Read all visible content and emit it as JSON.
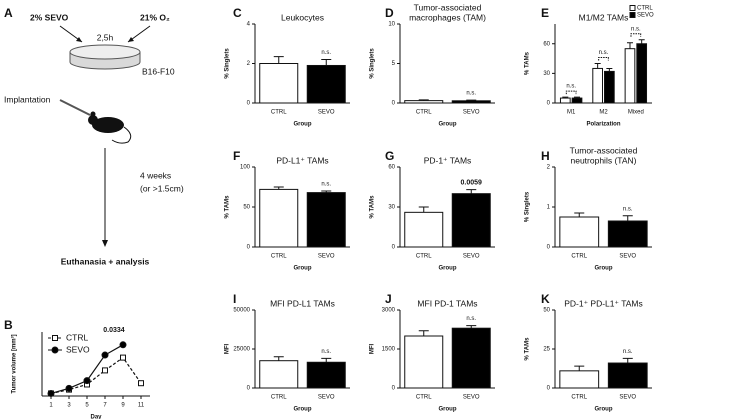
{
  "diagram": {
    "panel": "A",
    "sevo": "2% SEVO",
    "oxygen": "21% O₂",
    "time": "2,5h",
    "cells": "B16-F10",
    "implantation": "Implantation",
    "duration": "4 weeks",
    "criterion": "(or >1.5cm)",
    "endpoint": "Euthanasia + analysis"
  },
  "chart_data": [
    {
      "panel": "B",
      "type": "line",
      "xlabel": "Day",
      "ylabel": "Tumor volume [mm³]",
      "x": [
        1,
        3,
        5,
        7,
        9,
        11
      ],
      "xlim": [
        0,
        12
      ],
      "xticks": [
        1,
        3,
        5,
        7,
        9,
        11
      ],
      "ylim": [
        0,
        2500
      ],
      "series": [
        {
          "name": "CTRL",
          "color": "#ffffff",
          "values": [
            100,
            250,
            450,
            1000,
            1500,
            500
          ]
        },
        {
          "name": "SEVO",
          "color": "#000000",
          "values": [
            100,
            300,
            600,
            1600,
            2000,
            null
          ]
        }
      ],
      "annotation": "0.0334"
    },
    {
      "panel": "C",
      "type": "bar",
      "title": [
        "Leukocytes"
      ],
      "ylabel": "% Singlets",
      "xlabel": "Group",
      "categories": [
        "CTRL",
        "SEVO"
      ],
      "values": [
        2.0,
        1.9
      ],
      "errors": [
        0.35,
        0.3
      ],
      "colors": [
        "#ffffff",
        "#000000"
      ],
      "ylim": [
        0,
        4
      ],
      "yticks": [
        0,
        2,
        4
      ],
      "annotation": "n.s."
    },
    {
      "panel": "D",
      "type": "bar",
      "title": [
        "Tumor-associated",
        "macrophages (TAM)"
      ],
      "ylabel": "% Singlets",
      "xlabel": "Group",
      "categories": [
        "CTRL",
        "SEVO"
      ],
      "values": [
        0.3,
        0.28
      ],
      "errors": [
        0.1,
        0.08
      ],
      "colors": [
        "#ffffff",
        "#000000"
      ],
      "ylim": [
        0,
        10
      ],
      "yticks": [
        0,
        5,
        10
      ],
      "annotation": "n.s."
    },
    {
      "panel": "E",
      "type": "grouped_bar",
      "title": [
        "M1/M2 TAMs"
      ],
      "ylabel": "% TAMs",
      "xlabel": "Polarization",
      "categories": [
        "M1",
        "M2",
        "Mixed"
      ],
      "ylim": [
        0,
        80
      ],
      "yticks": [
        0,
        30,
        60
      ],
      "series": [
        {
          "name": "CTRL",
          "color": "#ffffff",
          "values": [
            5,
            35,
            55
          ],
          "errors": [
            1,
            5,
            6
          ]
        },
        {
          "name": "SEVO",
          "color": "#000000",
          "values": [
            5,
            32,
            60
          ],
          "errors": [
            1,
            3,
            4
          ]
        }
      ],
      "annotations": [
        "n.s.",
        "n.s.",
        "n.s."
      ],
      "legend": "upper right"
    },
    {
      "panel": "F",
      "type": "bar",
      "title": [
        "PD-L1⁺ TAMs"
      ],
      "ylabel": "% TAMs",
      "xlabel": "Group",
      "categories": [
        "CTRL",
        "SEVO"
      ],
      "values": [
        72,
        68
      ],
      "errors": [
        3,
        2
      ],
      "colors": [
        "#ffffff",
        "#000000"
      ],
      "ylim": [
        0,
        100
      ],
      "yticks": [
        0,
        50,
        100
      ],
      "annotation": "n.s."
    },
    {
      "panel": "G",
      "type": "bar",
      "title": [
        "PD-1⁺ TAMs"
      ],
      "ylabel": "% TAMs",
      "xlabel": "Group",
      "categories": [
        "CTRL",
        "SEVO"
      ],
      "values": [
        26,
        40
      ],
      "errors": [
        4,
        3
      ],
      "colors": [
        "#ffffff",
        "#000000"
      ],
      "ylim": [
        0,
        60
      ],
      "yticks": [
        0,
        30,
        60
      ],
      "annotation": "0.0059",
      "annotation_bold": true
    },
    {
      "panel": "H",
      "type": "bar",
      "title": [
        "Tumor-associated",
        "neutrophils (TAN)"
      ],
      "ylabel": "% Singlets",
      "xlabel": "Group",
      "categories": [
        "CTRL",
        "SEVO"
      ],
      "values": [
        0.75,
        0.65
      ],
      "errors": [
        0.1,
        0.13
      ],
      "colors": [
        "#ffffff",
        "#000000"
      ],
      "ylim": [
        0,
        2
      ],
      "yticks": [
        0,
        1,
        2
      ],
      "annotation": "n.s."
    },
    {
      "panel": "I",
      "type": "bar",
      "title": [
        "MFI PD-L1 TAMs"
      ],
      "ylabel": "MFI",
      "xlabel": "Group",
      "categories": [
        "CTRL",
        "SEVO"
      ],
      "values": [
        17500,
        16500
      ],
      "errors": [
        2500,
        2500
      ],
      "colors": [
        "#ffffff",
        "#000000"
      ],
      "ylim": [
        0,
        50000
      ],
      "yticks": [
        0,
        25000,
        50000
      ],
      "annotation": "n.s."
    },
    {
      "panel": "J",
      "type": "bar",
      "title": [
        "MFI PD-1 TAMs"
      ],
      "ylabel": "MFI",
      "xlabel": "Group",
      "categories": [
        "CTRL",
        "SEVO"
      ],
      "values": [
        2000,
        2300
      ],
      "errors": [
        200,
        100
      ],
      "colors": [
        "#ffffff",
        "#000000"
      ],
      "ylim": [
        0,
        3000
      ],
      "yticks": [
        0,
        1500,
        3000
      ],
      "annotation": "n.s."
    },
    {
      "panel": "K",
      "type": "bar",
      "title": [
        "PD-1⁺ PD-L1⁺ TAMs"
      ],
      "ylabel": "% TAMs",
      "xlabel": "Group",
      "categories": [
        "CTRL",
        "SEVO"
      ],
      "values": [
        11,
        16
      ],
      "errors": [
        3,
        3
      ],
      "colors": [
        "#ffffff",
        "#000000"
      ],
      "ylim": [
        0,
        50
      ],
      "yticks": [
        0,
        25,
        50
      ],
      "annotation": "n.s."
    }
  ]
}
